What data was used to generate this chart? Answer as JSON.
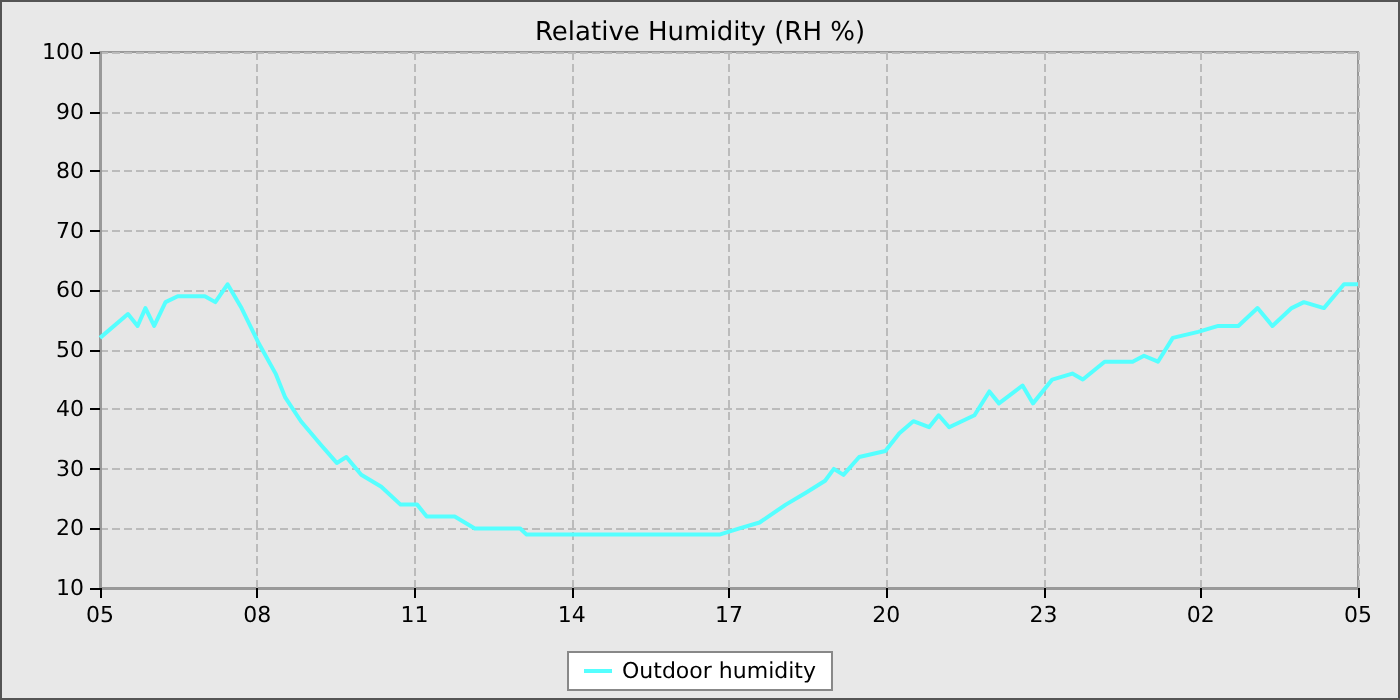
{
  "chart_data": {
    "type": "line",
    "title": "Relative Humidity (RH %)",
    "xlim": [
      "--01-01T05:00",
      "--01-02T05:00"
    ],
    "xticks": [
      {
        "value": "--01-01T05:00",
        "label": "05"
      },
      {
        "value": "--01-01T08:00",
        "label": "08"
      },
      {
        "value": "--01-01T11:00",
        "label": "11"
      },
      {
        "value": "--01-01T14:00",
        "label": "14"
      },
      {
        "value": "--01-01T17:00",
        "label": "17"
      },
      {
        "value": "--01-01T20:00",
        "label": "20"
      },
      {
        "value": "--01-01T23:00",
        "label": "23"
      },
      {
        "value": "--01-02T02:00",
        "label": "02"
      },
      {
        "value": "--01-02T05:00",
        "label": "05"
      }
    ],
    "ylim": [
      10,
      100
    ],
    "yticks": [
      10,
      20,
      30,
      40,
      50,
      60,
      70,
      80,
      90,
      100
    ],
    "grid": true,
    "legend": "bottom",
    "marker": "none",
    "line_style": "solid",
    "series": [
      {
        "name": "Outdoor humidity",
        "color": "#55ffff",
        "x": [
          "--01-01T05:00",
          "--01-01T05:32",
          "--01-01T05:43",
          "--01-01T05:52",
          "--01-01T06:02",
          "--01-01T06:15",
          "--01-01T06:29",
          "--01-01T07:00",
          "--01-01T07:12",
          "--01-01T07:26",
          "--01-01T07:42",
          "--01-01T08:02",
          "--01-01T08:21",
          "--01-01T08:32",
          "--01-01T08:50",
          "--01-01T09:13",
          "--01-01T09:31",
          "--01-01T09:42",
          "--01-01T09:59",
          "--01-01T10:22",
          "--01-01T10:44",
          "--01-01T11:03",
          "--01-01T11:14",
          "--01-01T11:46",
          "--01-01T12:09",
          "--01-01T13:01",
          "--01-01T13:08",
          "--01-01T13:30",
          "--01-01T14:30",
          "--01-01T15:30",
          "--01-01T16:30",
          "--01-01T16:50",
          "--01-01T17:12",
          "--01-01T17:35",
          "--01-01T18:05",
          "--01-01T18:28",
          "--01-01T18:50",
          "--01-01T19:00",
          "--01-01T19:11",
          "--01-01T19:29",
          "--01-01T19:59",
          "--01-01T20:15",
          "--01-01T20:31",
          "--01-01T20:49",
          "--01-01T21:00",
          "--01-01T21:12",
          "--01-01T21:41",
          "--01-01T21:58",
          "--01-01T22:09",
          "--01-01T22:36",
          "--01-01T22:48",
          "--01-01T23:10",
          "--01-01T23:33",
          "--01-01T23:45",
          "--01-02T00:10",
          "--01-02T00:42",
          "--01-02T00:55",
          "--01-02T01:11",
          "--01-02T01:28",
          "--01-02T01:57",
          "--01-02T02:20",
          "--01-02T02:43",
          "--01-02T03:05",
          "--01-02T03:22",
          "--01-02T03:44",
          "--01-02T03:58",
          "--01-02T04:21",
          "--01-02T04:44",
          "--01-02T04:55",
          "--01-02T05:00"
        ],
        "values": [
          52,
          56,
          54,
          57,
          54,
          58,
          59,
          59,
          58,
          61,
          57,
          51,
          46,
          42,
          38,
          34,
          31,
          32,
          29,
          27,
          24,
          24,
          22,
          22,
          20,
          20,
          19,
          19,
          19,
          19,
          19,
          19,
          20,
          21,
          24,
          26,
          28,
          30,
          29,
          32,
          33,
          36,
          38,
          37,
          39,
          37,
          39,
          43,
          41,
          44,
          41,
          45,
          46,
          45,
          48,
          48,
          49,
          48,
          52,
          53,
          54,
          54,
          57,
          54,
          57,
          58,
          57,
          61,
          61,
          61
        ]
      }
    ]
  }
}
